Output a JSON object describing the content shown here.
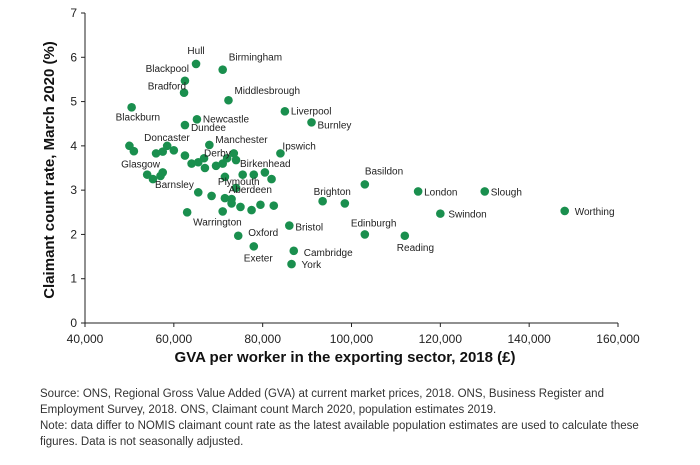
{
  "chart_data": {
    "type": "scatter",
    "xlabel": "GVA per worker in the exporting sector, 2018 (£)",
    "ylabel": "Claimant count rate, March 2020 (%)",
    "xlim": [
      40000,
      160000
    ],
    "ylim": [
      0,
      7
    ],
    "xticks": [
      40000,
      60000,
      80000,
      100000,
      120000,
      140000,
      160000
    ],
    "xtick_labels": [
      "40,000",
      "60,000",
      "80,000",
      "100,000",
      "120,000",
      "140,000",
      "160,000"
    ],
    "yticks": [
      0,
      1,
      2,
      3,
      4,
      5,
      6,
      7
    ],
    "grid": false,
    "marker_color": "#1a8f4e",
    "points": [
      {
        "label": "Hull",
        "x": 65000,
        "y": 5.85
      },
      {
        "label": "Birmingham",
        "x": 71000,
        "y": 5.72
      },
      {
        "label": "Blackpool",
        "x": 62500,
        "y": 5.47
      },
      {
        "label": "Bradford",
        "x": 62300,
        "y": 5.2
      },
      {
        "label": "Middlesbrough",
        "x": 72300,
        "y": 5.03
      },
      {
        "label": "Liverpool",
        "x": 85000,
        "y": 4.78
      },
      {
        "label": "Blackburn",
        "x": 50500,
        "y": 4.87
      },
      {
        "label": "Newcastle",
        "x": 65200,
        "y": 4.6
      },
      {
        "label": "Burnley",
        "x": 91000,
        "y": 4.53
      },
      {
        "label": "Dundee",
        "x": 62500,
        "y": 4.47
      },
      {
        "label": "Doncaster",
        "x": 58500,
        "y": 4.0
      },
      {
        "label": "Manchester",
        "x": 68000,
        "y": 4.02
      },
      {
        "label": "Ipswich",
        "x": 84000,
        "y": 3.83
      },
      {
        "label": "Glasgow",
        "x": 56000,
        "y": 3.83
      },
      {
        "label": "Derby",
        "x": 66800,
        "y": 3.72
      },
      {
        "label": "Birkenhead",
        "x": 74000,
        "y": 3.68
      },
      {
        "label": "Basildon",
        "x": 103000,
        "y": 3.13
      },
      {
        "label": "Plymouth",
        "x": 71500,
        "y": 3.3
      },
      {
        "label": "Barnsley",
        "x": 55300,
        "y": 3.25
      },
      {
        "label": "London",
        "x": 115000,
        "y": 2.97
      },
      {
        "label": "Slough",
        "x": 130000,
        "y": 2.97
      },
      {
        "label": "Aberdeen",
        "x": 73000,
        "y": 2.8
      },
      {
        "label": "Brighton",
        "x": 93500,
        "y": 2.75
      },
      {
        "label": "Worthing",
        "x": 148000,
        "y": 2.53
      },
      {
        "label": "Swindon",
        "x": 120000,
        "y": 2.47
      },
      {
        "label": "Warrington",
        "x": 63000,
        "y": 2.5
      },
      {
        "label": "Bristol",
        "x": 86000,
        "y": 2.2
      },
      {
        "label": "Edinburgh",
        "x": 103000,
        "y": 2.0
      },
      {
        "label": "Reading",
        "x": 112000,
        "y": 1.97
      },
      {
        "label": "Oxford",
        "x": 74500,
        "y": 1.97
      },
      {
        "label": "Cambridge",
        "x": 87000,
        "y": 1.63
      },
      {
        "label": "Exeter",
        "x": 78000,
        "y": 1.73
      },
      {
        "label": "York",
        "x": 86500,
        "y": 1.33
      },
      {
        "label": "",
        "x": 50000,
        "y": 4.0
      },
      {
        "label": "",
        "x": 51000,
        "y": 3.88
      },
      {
        "label": "",
        "x": 60000,
        "y": 3.9
      },
      {
        "label": "",
        "x": 57500,
        "y": 3.87
      },
      {
        "label": "",
        "x": 62500,
        "y": 3.78
      },
      {
        "label": "",
        "x": 64000,
        "y": 3.6
      },
      {
        "label": "",
        "x": 65500,
        "y": 3.63
      },
      {
        "label": "",
        "x": 67000,
        "y": 3.5
      },
      {
        "label": "",
        "x": 69500,
        "y": 3.55
      },
      {
        "label": "",
        "x": 71000,
        "y": 3.6
      },
      {
        "label": "",
        "x": 72000,
        "y": 3.72
      },
      {
        "label": "",
        "x": 73500,
        "y": 3.83
      },
      {
        "label": "",
        "x": 75500,
        "y": 3.35
      },
      {
        "label": "",
        "x": 78000,
        "y": 3.35
      },
      {
        "label": "",
        "x": 80500,
        "y": 3.4
      },
      {
        "label": "",
        "x": 82000,
        "y": 3.25
      },
      {
        "label": "",
        "x": 74000,
        "y": 3.05
      },
      {
        "label": "",
        "x": 54000,
        "y": 3.35
      },
      {
        "label": "",
        "x": 57000,
        "y": 3.32
      },
      {
        "label": "",
        "x": 57500,
        "y": 3.4
      },
      {
        "label": "",
        "x": 65500,
        "y": 2.95
      },
      {
        "label": "",
        "x": 68500,
        "y": 2.87
      },
      {
        "label": "",
        "x": 71500,
        "y": 2.82
      },
      {
        "label": "",
        "x": 73000,
        "y": 2.7
      },
      {
        "label": "",
        "x": 75000,
        "y": 2.62
      },
      {
        "label": "",
        "x": 71000,
        "y": 2.52
      },
      {
        "label": "",
        "x": 77500,
        "y": 2.55
      },
      {
        "label": "",
        "x": 79500,
        "y": 2.67
      },
      {
        "label": "",
        "x": 82500,
        "y": 2.65
      },
      {
        "label": "",
        "x": 98500,
        "y": 2.7
      }
    ]
  },
  "footnotes": {
    "source": "Source: ONS, Regional Gross Value Added (GVA) at current market prices, 2018. ONS, Business Register and Employment Survey, 2018. ONS, Claimant count March 2020, population estimates 2019.",
    "note": "Note: data differ to NOMIS claimant count rate as the latest available population estimates are used to calculate these figures. Data is not seasonally adjusted."
  }
}
